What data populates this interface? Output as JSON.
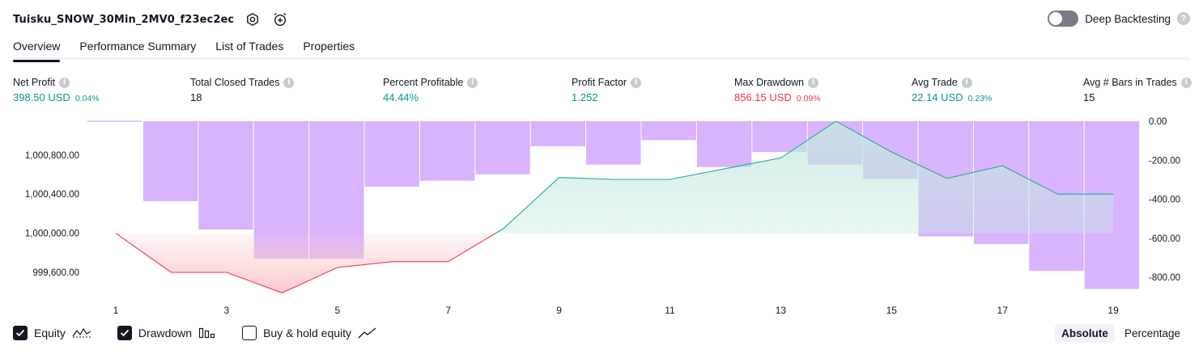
{
  "header": {
    "title": "Tuisku_SNOW_30Min_2MV0_f23ec2ec",
    "deep_backtesting_label": "Deep Backtesting",
    "deep_backtesting_on": false,
    "help_glyph": "?"
  },
  "tabs": [
    {
      "label": "Overview",
      "active": true
    },
    {
      "label": "Performance Summary",
      "active": false
    },
    {
      "label": "List of Trades",
      "active": false
    },
    {
      "label": "Properties",
      "active": false
    }
  ],
  "metrics": [
    {
      "label": "Net Profit",
      "value": "398.50 USD",
      "pct": "0.04%",
      "color": "#089981"
    },
    {
      "label": "Total Closed Trades",
      "value": "18",
      "pct": "",
      "color": "#131722"
    },
    {
      "label": "Percent Profitable",
      "value": "44.44%",
      "pct": "",
      "color": "#089981"
    },
    {
      "label": "Profit Factor",
      "value": "1.252",
      "pct": "",
      "color": "#089981"
    },
    {
      "label": "Max Drawdown",
      "value": "856.15 USD",
      "pct": "0.09%",
      "color": "#f23645"
    },
    {
      "label": "Avg Trade",
      "value": "22.14 USD",
      "pct": "0.23%",
      "color": "#089981"
    },
    {
      "label": "Avg # Bars in Trades",
      "value": "15",
      "pct": "",
      "color": "#131722"
    }
  ],
  "info_glyph": "i",
  "chart_data": {
    "type": "line",
    "x_ticks": [
      "1",
      "3",
      "5",
      "7",
      "9",
      "11",
      "13",
      "15",
      "17",
      "19"
    ],
    "left_axis": {
      "ticks": [
        "1,000,800.00",
        "1,000,400.00",
        "1,000,000.00",
        "999,600.00"
      ],
      "ylim": [
        999410,
        1001145
      ]
    },
    "right_axis": {
      "ticks": [
        "0.00",
        "-200.00",
        "-400.00",
        "-600.00",
        "-800.00"
      ],
      "ylim": [
        -870,
        0
      ]
    },
    "baseline": 1000000,
    "series": [
      {
        "name": "Equity",
        "x": [
          1,
          2,
          3,
          4,
          5,
          6,
          7,
          8,
          9,
          10,
          11,
          12,
          13,
          14,
          15,
          16,
          17,
          18,
          19
        ],
        "values": [
          1000000,
          999600,
          999600,
          999390,
          999650,
          999710,
          999710,
          1000050,
          1000570,
          1000550,
          1000550,
          1000660,
          1000770,
          1001145,
          1000830,
          1000560,
          1000690,
          1000400,
          1000400
        ]
      },
      {
        "name": "Drawdown",
        "x": [
          1,
          2,
          3,
          4,
          5,
          6,
          7,
          8,
          9,
          10,
          11,
          12,
          13,
          14,
          15,
          16,
          17,
          18,
          19
        ],
        "values": [
          0,
          -410,
          -555,
          -705,
          -705,
          -335,
          -305,
          -272,
          -128,
          -222,
          -97,
          -235,
          -158,
          -222,
          -295,
          -590,
          -630,
          -767,
          -860
        ]
      }
    ],
    "colors": {
      "equity_up_line": "#22ab94",
      "equity_up_fill": "#c4eadf",
      "equity_down_line": "#f23645",
      "equity_down_fill": "#fbc8cb",
      "drawdown_bar": "#d9b3fd"
    }
  },
  "legend": [
    {
      "label": "Equity",
      "checked": true,
      "icon": "equity-line-icon"
    },
    {
      "label": "Drawdown",
      "checked": true,
      "icon": "drawdown-bars-icon"
    },
    {
      "label": "Buy & hold equity",
      "checked": false,
      "icon": "buy-hold-line-icon"
    }
  ],
  "modes": [
    {
      "label": "Absolute",
      "active": true
    },
    {
      "label": "Percentage",
      "active": false
    }
  ]
}
